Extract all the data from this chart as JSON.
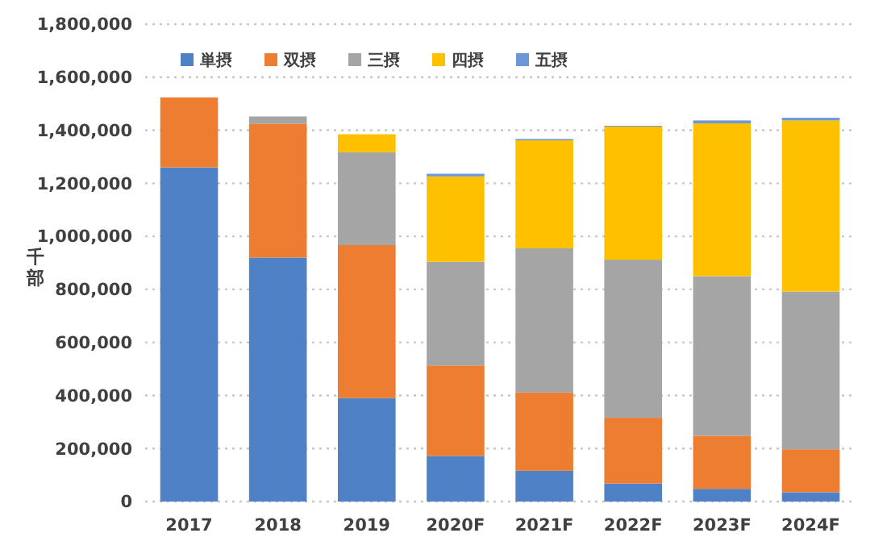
{
  "chart_data": {
    "type": "bar",
    "stacked": true,
    "ylabel": "千部",
    "categories": [
      "2017",
      "2018",
      "2019",
      "2020F",
      "2021F",
      "2022F",
      "2023F",
      "2024F"
    ],
    "series": [
      {
        "name": "単摂",
        "color": "#4f81c7",
        "values": [
          1260000,
          920000,
          390000,
          172000,
          116000,
          68000,
          48000,
          35000
        ]
      },
      {
        "name": "双摂",
        "color": "#ed7d31",
        "values": [
          264000,
          505000,
          577000,
          341000,
          295000,
          248000,
          200000,
          162000
        ]
      },
      {
        "name": "三摂",
        "color": "#a5a5a5",
        "values": [
          0,
          27000,
          350000,
          391000,
          544000,
          596000,
          602000,
          595000
        ]
      },
      {
        "name": "四摂",
        "color": "#ffc000",
        "values": [
          0,
          0,
          68000,
          322000,
          407000,
          502000,
          576000,
          645000
        ]
      },
      {
        "name": "五摂",
        "color": "#6a98d8",
        "values": [
          0,
          0,
          0,
          10000,
          5000,
          3000,
          11000,
          10000
        ]
      }
    ],
    "ylim": [
      0,
      1800000
    ],
    "yticks": [
      {
        "value": 0,
        "label": "0"
      },
      {
        "value": 200000,
        "label": "200,000"
      },
      {
        "value": 400000,
        "label": "400,000"
      },
      {
        "value": 600000,
        "label": "600,000"
      },
      {
        "value": 800000,
        "label": "800,000"
      },
      {
        "value": 1000000,
        "label": "1,000,000"
      },
      {
        "value": 1200000,
        "label": "1,200,000"
      },
      {
        "value": 1400000,
        "label": "1,400,000"
      },
      {
        "value": 1600000,
        "label": "1,600,000"
      },
      {
        "value": 1800000,
        "label": "1,800,000"
      }
    ],
    "grid": "y",
    "legend": "top"
  }
}
